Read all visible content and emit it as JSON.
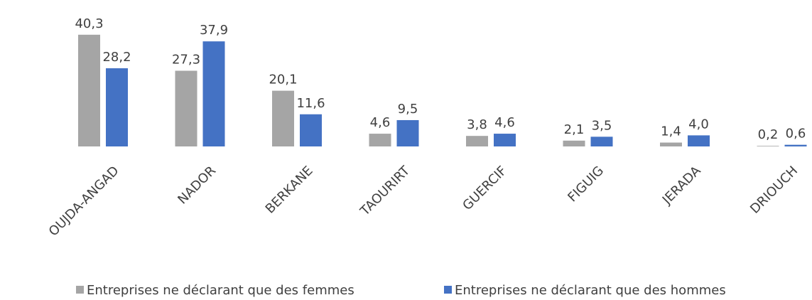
{
  "chart_data": {
    "type": "bar",
    "categories": [
      "OUJDA-ANGAD",
      "NADOR",
      "BERKANE",
      "TAOURIRT",
      "GUERCIF",
      "FIGUIG",
      "JERADA",
      "DRIOUCH"
    ],
    "series": [
      {
        "name": "Entreprises ne déclarant que des femmes",
        "color": "#a5a5a5",
        "values": [
          40.3,
          27.3,
          20.1,
          4.6,
          3.8,
          2.1,
          1.4,
          0.2
        ],
        "value_labels": [
          "40,3",
          "27,3",
          "20,1",
          "4,6",
          "3,8",
          "2,1",
          "1,4",
          "0,2"
        ]
      },
      {
        "name": "Entreprises ne déclarant que des hommes",
        "color": "#4472c4",
        "values": [
          28.2,
          37.9,
          11.6,
          9.5,
          4.6,
          3.5,
          4.0,
          0.6
        ],
        "value_labels": [
          "28,2",
          "37,9",
          "11,6",
          "9,5",
          "4,6",
          "3,5",
          "4,0",
          "0,6"
        ]
      }
    ],
    "legend": "bottom"
  }
}
